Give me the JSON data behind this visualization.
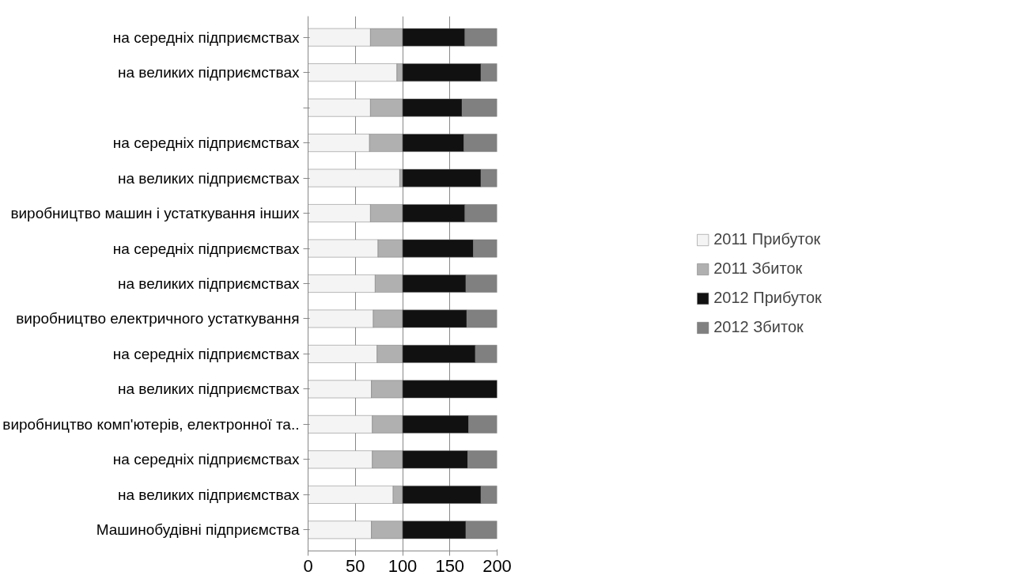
{
  "chart_data": {
    "type": "bar",
    "orientation": "horizontal",
    "stacked": true,
    "categories": [
      "на середніх підприємствах",
      "на великих підприємствах",
      null,
      "на середніх підприємствах",
      "на великих підприємствах",
      "виробництво машин і устаткування інших",
      "на середніх підприємствах",
      "на великих підприємствах",
      "виробництво електричного устаткування",
      "на середніх підприємствах",
      "на великих підприємствах",
      "виробництво комп'ютерів, електронної та..",
      "на середніх підприємствах",
      "на великих підприємствах",
      "Машинобудівні підприємства"
    ],
    "series": [
      {
        "name": "2011 Прибуток",
        "color": "#f4f4f4",
        "values": [
          66,
          94,
          66,
          65,
          97,
          66,
          74,
          71,
          69,
          73,
          67,
          68,
          68,
          90,
          67
        ]
      },
      {
        "name": "2011 Збиток",
        "color": "#b0b0b0",
        "values": [
          34,
          6,
          34,
          35,
          3,
          34,
          26,
          29,
          31,
          27,
          33,
          32,
          32,
          10,
          33
        ]
      },
      {
        "name": "2012 Прибуток",
        "color": "#111111",
        "values": [
          66,
          83,
          63,
          65,
          83,
          66,
          75,
          67,
          68,
          77,
          100,
          70,
          69,
          83,
          67
        ]
      },
      {
        "name": "2012 Збиток",
        "color": "#808080",
        "values": [
          34,
          17,
          37,
          35,
          17,
          34,
          25,
          33,
          32,
          23,
          0,
          30,
          31,
          17,
          33
        ]
      }
    ],
    "xlim": [
      0,
      200
    ],
    "xticks": [
      0,
      50,
      100,
      150,
      200
    ],
    "grid": "x",
    "legend": "right"
  }
}
